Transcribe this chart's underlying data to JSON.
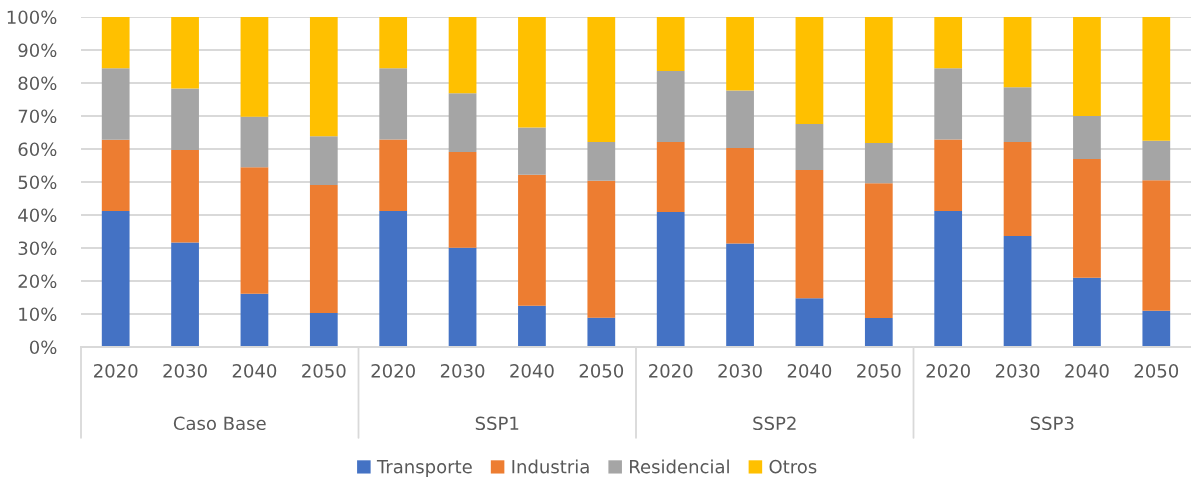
{
  "chart_data": {
    "type": "bar",
    "stacked": true,
    "categories": [
      "2020",
      "2030",
      "2040",
      "2050",
      "2020",
      "2030",
      "2040",
      "2050",
      "2020",
      "2030",
      "2040",
      "2050",
      "2020",
      "2030",
      "2040",
      "2050"
    ],
    "series": [
      {
        "name": "Transporte",
        "color": "#4472c4",
        "values": [
          41.2,
          31.7,
          16.1,
          10.3,
          41.2,
          30.1,
          12.5,
          8.9,
          40.9,
          31.4,
          14.8,
          8.8,
          41.2,
          33.6,
          21.0,
          11.0
        ]
      },
      {
        "name": "Industria",
        "color": "#ed7d31",
        "values": [
          21.6,
          28.0,
          38.4,
          38.8,
          21.7,
          29.0,
          39.7,
          41.5,
          21.2,
          28.9,
          38.8,
          40.8,
          21.7,
          28.5,
          36.0,
          39.5
        ]
      },
      {
        "name": "Residencial",
        "color": "#a5a5a5",
        "values": [
          21.7,
          18.6,
          15.3,
          14.8,
          21.6,
          17.8,
          14.3,
          11.7,
          21.5,
          17.4,
          14.0,
          12.2,
          21.6,
          16.6,
          13.0,
          12.0
        ]
      },
      {
        "name": "Otros",
        "color": "#ffc000",
        "values": [
          15.5,
          21.7,
          30.2,
          36.1,
          15.5,
          23.1,
          33.5,
          37.9,
          16.4,
          22.3,
          32.4,
          38.2,
          15.5,
          21.3,
          30.0,
          37.5
        ]
      }
    ],
    "ylim": [
      0,
      100
    ],
    "yticks": [
      {
        "value": 0,
        "label": "0%"
      },
      {
        "value": 10,
        "label": "10%"
      },
      {
        "value": 20,
        "label": "20%"
      },
      {
        "value": 30,
        "label": "30%"
      },
      {
        "value": 40,
        "label": "40%"
      },
      {
        "value": 50,
        "label": "50%"
      },
      {
        "value": 60,
        "label": "60%"
      },
      {
        "value": 70,
        "label": "70%"
      },
      {
        "value": 80,
        "label": "80%"
      },
      {
        "value": 90,
        "label": "90%"
      },
      {
        "value": 100,
        "label": "100%"
      }
    ],
    "grid": "y",
    "legend": "bottom",
    "annotations": [
      "Caso Base",
      "SSP1",
      "SSP2",
      "SSP3"
    ]
  }
}
